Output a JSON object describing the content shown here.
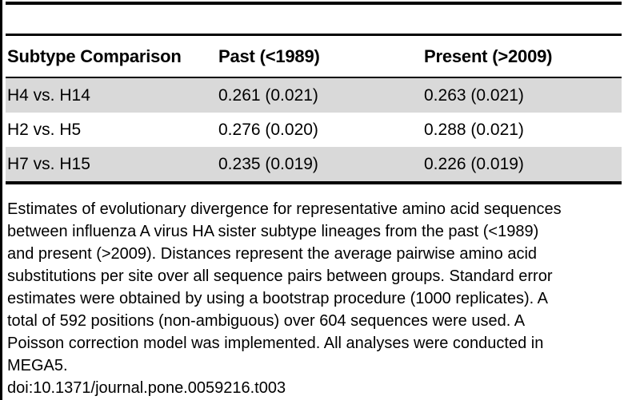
{
  "table": {
    "columns": {
      "comparison": "Subtype Comparison",
      "past": "Past (<1989)",
      "present": "Present (>2009)"
    },
    "rows": [
      {
        "comparison": "H4 vs. H14",
        "past": "0.261 (0.021)",
        "present": "0.263 (0.021)"
      },
      {
        "comparison": "H2 vs. H5",
        "past": "0.276 (0.020)",
        "present": "0.288 (0.021)"
      },
      {
        "comparison": "H7 vs. H15",
        "past": "0.235 (0.019)",
        "present": "0.226 (0.019)"
      }
    ],
    "shading": {
      "shaded_row_color": "#d9d9d9",
      "shaded_rows": [
        0,
        2
      ]
    }
  },
  "caption": {
    "lines": [
      "Estimates of evolutionary divergence for representative amino acid sequences",
      "between influenza A virus HA sister subtype lineages from the past (<1989)",
      "and present (>2009). Distances represent the average pairwise amino acid",
      "substitutions per site over all sequence pairs between groups. Standard error",
      "estimates were obtained by using a bootstrap procedure (1000 replicates). A",
      "total of 592 positions (non-ambiguous) over 604 sequences were used. A",
      "Poisson correction model was implemented. All analyses were conducted in",
      "MEGA5."
    ],
    "doi": "doi:10.1371/journal.pone.0059216.t003"
  },
  "colors": {
    "rule": "#000000",
    "text": "#000000",
    "background": "#ffffff"
  }
}
